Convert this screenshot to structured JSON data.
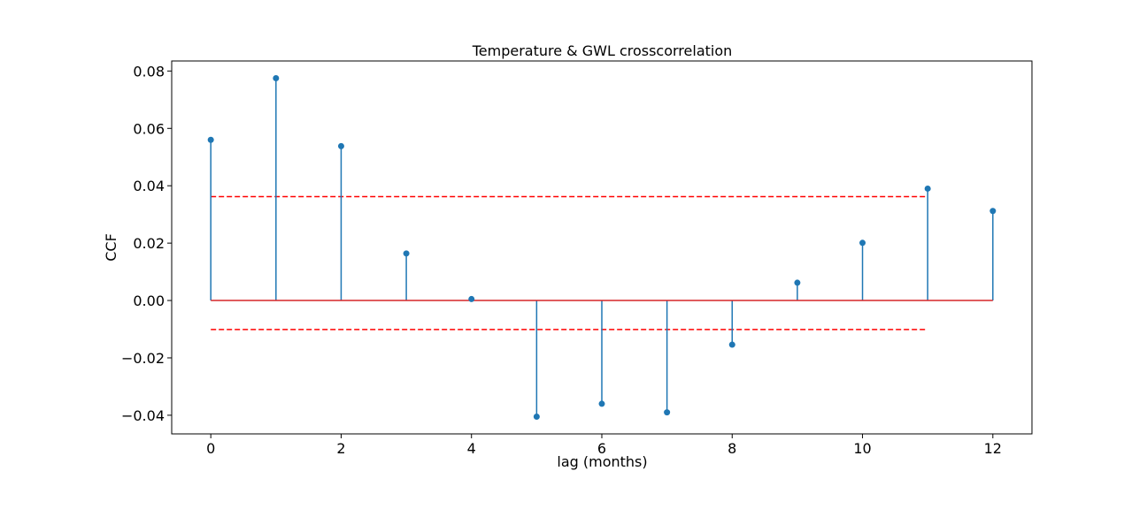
{
  "chart_data": {
    "type": "stem",
    "title": "Temperature & GWL crosscorrelation",
    "xlabel": "lag (months)",
    "ylabel": "CCF",
    "xlim": [
      -0.6,
      12.6
    ],
    "ylim": [
      -0.0465,
      0.0835
    ],
    "xticks": [
      0,
      2,
      4,
      6,
      8,
      10,
      12
    ],
    "xtick_labels": [
      "0",
      "2",
      "4",
      "6",
      "8",
      "10",
      "12"
    ],
    "yticks": [
      0.08,
      0.06,
      0.04,
      0.02,
      0.0,
      -0.02,
      -0.04
    ],
    "ytick_labels": [
      "0.08",
      "0.06",
      "0.04",
      "0.02",
      "0.00",
      "−0.02",
      "−0.04"
    ],
    "lags": [
      0,
      1,
      2,
      3,
      4,
      5,
      6,
      7,
      8,
      9,
      10,
      11,
      12
    ],
    "values": [
      0.056,
      0.0775,
      0.0538,
      0.0164,
      0.0005,
      -0.0405,
      -0.036,
      -0.039,
      -0.0154,
      0.0062,
      0.0201,
      0.039,
      0.0312
    ],
    "baseline": {
      "y": 0.0,
      "x_range": [
        0,
        12
      ]
    },
    "confidence_bounds": [
      {
        "y": 0.0362,
        "x_range": [
          0,
          11
        ]
      },
      {
        "y": -0.0101,
        "x_range": [
          0,
          11
        ]
      }
    ],
    "grid": false,
    "colors": {
      "stem": "#1f77b4",
      "marker": "#1f77b4",
      "baseline": "#d62728",
      "bounds": "#ff0000"
    }
  }
}
